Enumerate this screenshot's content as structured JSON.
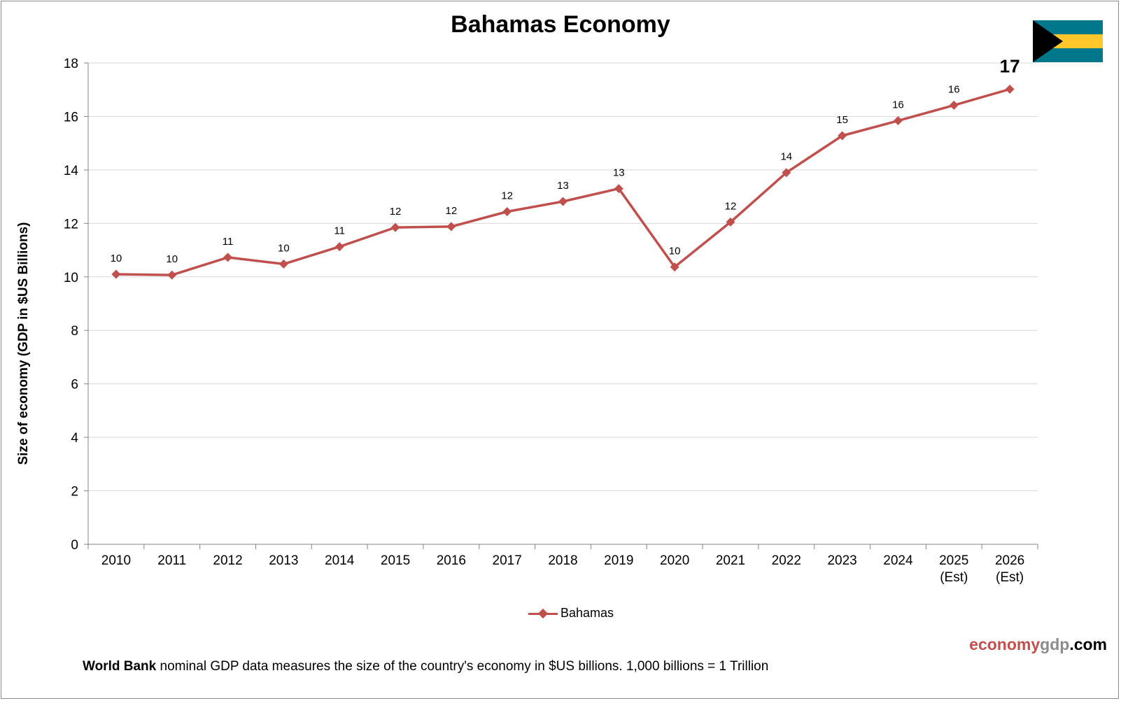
{
  "title": "Bahamas Economy",
  "ylabel": "Size of economy (GDP in $US Billions)",
  "brand": {
    "part1": "economy",
    "part2": "gdp",
    "part3": ".com"
  },
  "footnote": {
    "source": "World Bank",
    "text": " nominal GDP data  measures the size of the country's economy in $US billions.  1,000 billions = 1 Trillion"
  },
  "flag_colors": {
    "aquamarine": "#00778b",
    "gold": "#ffc72c",
    "black": "#000000"
  },
  "series_color": "#c0504d",
  "chart_data": {
    "type": "line",
    "title": "Bahamas Economy",
    "xlabel": "",
    "ylabel": "Size of economy (GDP in $US Billions)",
    "ylim": [
      0,
      18
    ],
    "yticks": [
      0,
      2,
      4,
      6,
      8,
      10,
      12,
      14,
      16,
      18
    ],
    "grid": true,
    "legend_position": "bottom",
    "categories": [
      [
        "2010"
      ],
      [
        "2011"
      ],
      [
        "2012"
      ],
      [
        "2013"
      ],
      [
        "2014"
      ],
      [
        "2015"
      ],
      [
        "2016"
      ],
      [
        "2017"
      ],
      [
        "2018"
      ],
      [
        "2019"
      ],
      [
        "2020"
      ],
      [
        "2021"
      ],
      [
        "2022"
      ],
      [
        "2023"
      ],
      [
        "2024"
      ],
      [
        "2025",
        "(Est)"
      ],
      [
        "2026",
        "(Est)"
      ]
    ],
    "series": [
      {
        "name": "Bahamas",
        "values": [
          10.1,
          10.07,
          10.73,
          10.48,
          11.13,
          11.85,
          11.88,
          12.44,
          12.82,
          13.3,
          10.37,
          12.05,
          13.9,
          15.28,
          15.84,
          16.42,
          17.02
        ],
        "labels": [
          "10",
          "10",
          "11",
          "10",
          "11",
          "12",
          "12",
          "12",
          "13",
          "13",
          "10",
          "12",
          "14",
          "15",
          "16",
          "16",
          "17"
        ]
      }
    ]
  }
}
